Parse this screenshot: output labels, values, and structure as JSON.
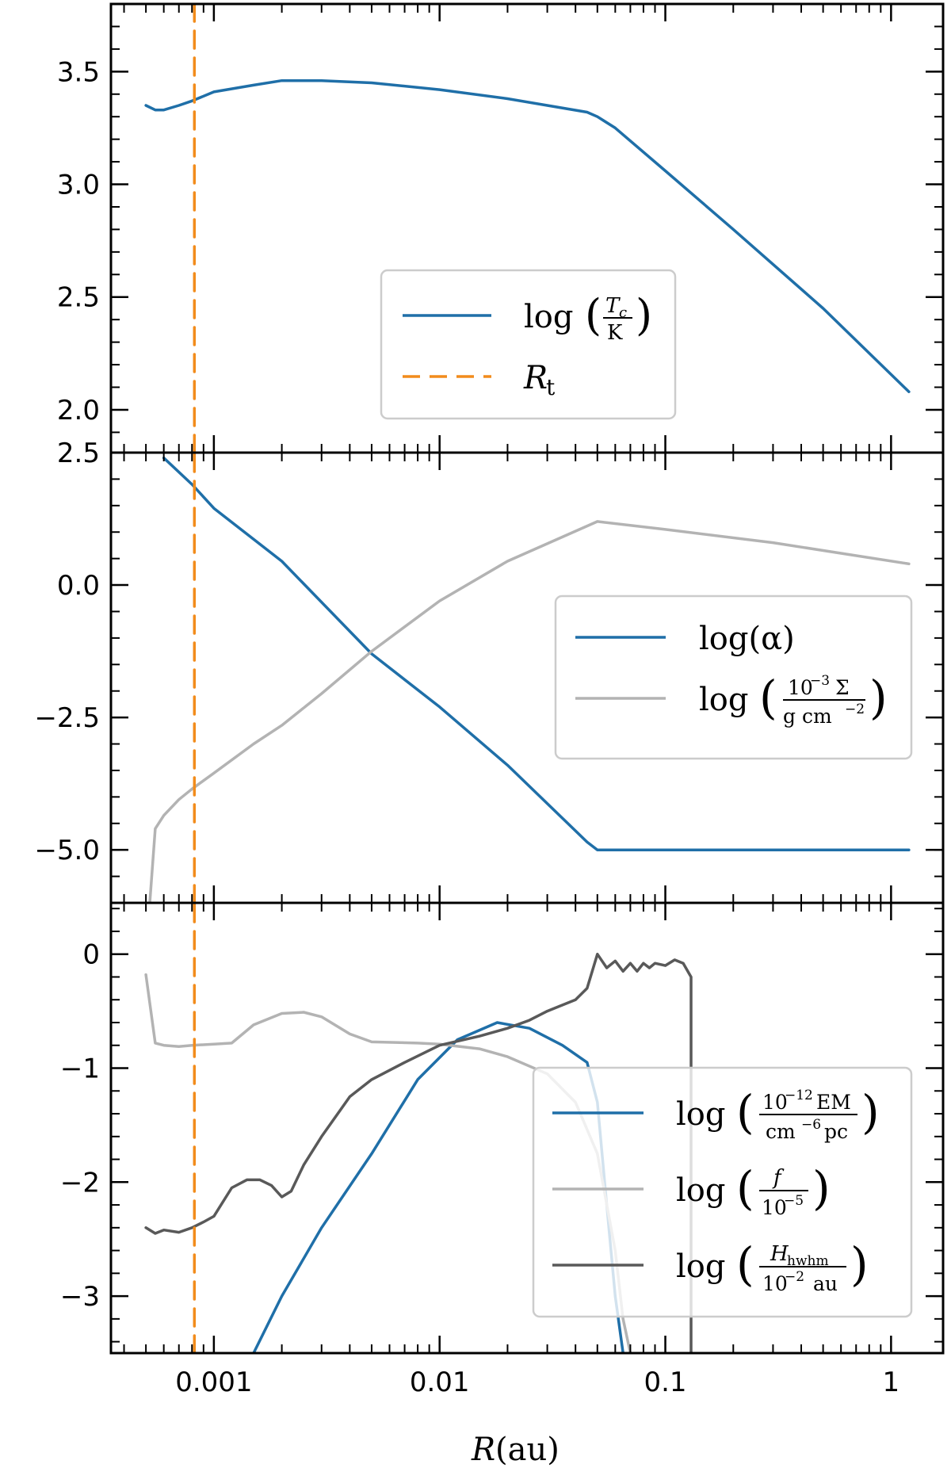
{
  "figure": {
    "xlabel": {
      "var": "R",
      "unit": "(au)"
    },
    "x_ticks": [
      {
        "value": 0.001,
        "label": "0.001"
      },
      {
        "value": 0.01,
        "label": "0.01"
      },
      {
        "value": 0.1,
        "label": "0.1"
      },
      {
        "value": 1,
        "label": "1"
      }
    ]
  },
  "colors": {
    "blue": "#1f6fa8",
    "lightgray": "#b3b3b3",
    "darkgray": "#595959",
    "orange": "#f28c1c"
  },
  "chart_data": [
    {
      "type": "line",
      "panel": "top",
      "xscale": "log",
      "xlim": [
        0.00035,
        1.7
      ],
      "ylim": [
        1.81,
        3.8
      ],
      "y_ticks": [
        {
          "value": 2.0,
          "label": "2.0"
        },
        {
          "value": 2.5,
          "label": "2.5"
        },
        {
          "value": 3.0,
          "label": "3.0"
        },
        {
          "value": 3.5,
          "label": "3.5"
        }
      ],
      "legend_placement": "center-right",
      "series": [
        {
          "name": "log(T_c/K)",
          "color": "#1f6fa8",
          "style": "solid",
          "x": [
            0.0005,
            0.00055,
            0.0006,
            0.0007,
            0.0008,
            0.001,
            0.0015,
            0.002,
            0.003,
            0.005,
            0.01,
            0.02,
            0.03,
            0.045,
            0.05,
            0.06,
            0.1,
            0.2,
            0.5,
            1.2
          ],
          "y": [
            3.35,
            3.33,
            3.33,
            3.35,
            3.37,
            3.41,
            3.44,
            3.46,
            3.46,
            3.45,
            3.42,
            3.38,
            3.35,
            3.32,
            3.3,
            3.25,
            3.06,
            2.8,
            2.45,
            2.08
          ]
        },
        {
          "name": "R_t",
          "color": "#f28c1c",
          "style": "dashed",
          "x": [
            0.00082,
            0.00082
          ],
          "y": [
            1.81,
            3.8
          ]
        }
      ],
      "legend": [
        {
          "main": "log",
          "num": "T",
          "num_sub": "c",
          "den": "K"
        },
        {
          "main": "R",
          "sub": "t"
        }
      ]
    },
    {
      "type": "line",
      "panel": "middle",
      "xscale": "log",
      "xlim": [
        0.00035,
        1.7
      ],
      "ylim": [
        -6.0,
        2.5
      ],
      "y_ticks": [
        {
          "value": -5.0,
          "label": "−5.0"
        },
        {
          "value": -2.5,
          "label": "−2.5"
        },
        {
          "value": 0.0,
          "label": "0.0"
        },
        {
          "value": 2.5,
          "label": "2.5"
        }
      ],
      "legend_placement": "center-right",
      "series": [
        {
          "name": "log(α)",
          "color": "#1f6fa8",
          "style": "solid",
          "x": [
            0.0006,
            0.0008,
            0.001,
            0.002,
            0.005,
            0.01,
            0.02,
            0.045,
            0.05,
            0.1,
            0.5,
            1.2
          ],
          "y": [
            2.4,
            1.9,
            1.45,
            0.45,
            -1.3,
            -2.3,
            -3.4,
            -4.85,
            -5.0,
            -5.0,
            -5.0,
            -5.0
          ]
        },
        {
          "name": "log(10^-3 Σ / g cm^-2)",
          "color": "#b3b3b3",
          "style": "solid",
          "x": [
            0.00052,
            0.00055,
            0.0006,
            0.0007,
            0.0008,
            0.001,
            0.0015,
            0.002,
            0.003,
            0.005,
            0.01,
            0.02,
            0.05,
            0.1,
            0.3,
            0.6,
            1.2
          ],
          "y": [
            -6.0,
            -4.6,
            -4.35,
            -4.05,
            -3.85,
            -3.55,
            -3.0,
            -2.65,
            -2.05,
            -1.25,
            -0.3,
            0.45,
            1.2,
            1.05,
            0.8,
            0.6,
            0.4
          ]
        },
        {
          "name": "R_t",
          "color": "#f28c1c",
          "style": "dashed",
          "x": [
            0.00082,
            0.00082
          ],
          "y": [
            -6.0,
            2.5
          ]
        }
      ],
      "legend": [
        {
          "main": "log(α)"
        },
        {
          "main": "log",
          "num": "10",
          "num_sup": "−3",
          "num_tail": "Σ",
          "den": "g cm",
          "den_sup": "−2"
        }
      ]
    },
    {
      "type": "line",
      "panel": "bottom",
      "xscale": "log",
      "xlim": [
        0.00035,
        1.7
      ],
      "ylim": [
        -3.5,
        0.45
      ],
      "y_ticks": [
        {
          "value": -3,
          "label": "−3"
        },
        {
          "value": -2,
          "label": "−2"
        },
        {
          "value": -1,
          "label": "−1"
        },
        {
          "value": 0,
          "label": "0"
        }
      ],
      "legend_placement": "lower-right",
      "series": [
        {
          "name": "log(10^-12 EM / cm^-6 pc)",
          "color": "#1f6fa8",
          "style": "solid",
          "x": [
            0.0015,
            0.002,
            0.003,
            0.005,
            0.008,
            0.012,
            0.018,
            0.025,
            0.035,
            0.045,
            0.05,
            0.055,
            0.06,
            0.065
          ],
          "y": [
            -3.5,
            -3.0,
            -2.4,
            -1.75,
            -1.1,
            -0.75,
            -0.6,
            -0.65,
            -0.8,
            -0.95,
            -1.3,
            -2.2,
            -3.0,
            -3.5
          ]
        },
        {
          "name": "log(f / 10^-5)",
          "color": "#b3b3b3",
          "style": "solid",
          "x": [
            0.0005,
            0.00055,
            0.0006,
            0.0007,
            0.0008,
            0.001,
            0.0012,
            0.0015,
            0.002,
            0.0025,
            0.003,
            0.004,
            0.005,
            0.008,
            0.01,
            0.015,
            0.02,
            0.03,
            0.04,
            0.05,
            0.06,
            0.065,
            0.07
          ],
          "y": [
            -0.18,
            -0.78,
            -0.8,
            -0.81,
            -0.8,
            -0.79,
            -0.78,
            -0.62,
            -0.52,
            -0.51,
            -0.55,
            -0.7,
            -0.77,
            -0.78,
            -0.79,
            -0.83,
            -0.9,
            -1.05,
            -1.3,
            -1.75,
            -2.6,
            -3.2,
            -3.5
          ]
        },
        {
          "name": "log(H_hwhm / 10^-2 au)",
          "color": "#595959",
          "style": "solid",
          "x": [
            0.0005,
            0.00055,
            0.0006,
            0.0007,
            0.0008,
            0.0009,
            0.001,
            0.0012,
            0.0014,
            0.0016,
            0.0018,
            0.002,
            0.0022,
            0.0025,
            0.003,
            0.004,
            0.005,
            0.007,
            0.01,
            0.015,
            0.02,
            0.025,
            0.03,
            0.04,
            0.045,
            0.05,
            0.055,
            0.06,
            0.065,
            0.07,
            0.075,
            0.08,
            0.085,
            0.09,
            0.1,
            0.11,
            0.12,
            0.13,
            0.13
          ],
          "y": [
            -2.4,
            -2.45,
            -2.42,
            -2.44,
            -2.4,
            -2.35,
            -2.3,
            -2.05,
            -1.98,
            -1.98,
            -2.03,
            -2.13,
            -2.08,
            -1.85,
            -1.6,
            -1.25,
            -1.1,
            -0.95,
            -0.8,
            -0.72,
            -0.65,
            -0.58,
            -0.5,
            -0.4,
            -0.3,
            0.0,
            -0.12,
            -0.06,
            -0.15,
            -0.08,
            -0.15,
            -0.08,
            -0.12,
            -0.08,
            -0.1,
            -0.05,
            -0.08,
            -0.2,
            -3.5
          ]
        },
        {
          "name": "R_t",
          "color": "#f28c1c",
          "style": "dashed",
          "x": [
            0.00082,
            0.00082
          ],
          "y": [
            -3.5,
            0.45
          ]
        }
      ],
      "legend": [
        {
          "main": "log",
          "num": "10",
          "num_sup": "−12",
          "num_tail": "EM",
          "den": "cm",
          "den_sup": "−6",
          "den_tail": "pc"
        },
        {
          "main": "log",
          "num": "f",
          "den": "10",
          "den_sup": "−5"
        },
        {
          "main": "log",
          "num": "H",
          "num_sub": "hwhm",
          "den": "10",
          "den_sup": "−2",
          "den_tail": "au"
        }
      ]
    }
  ]
}
